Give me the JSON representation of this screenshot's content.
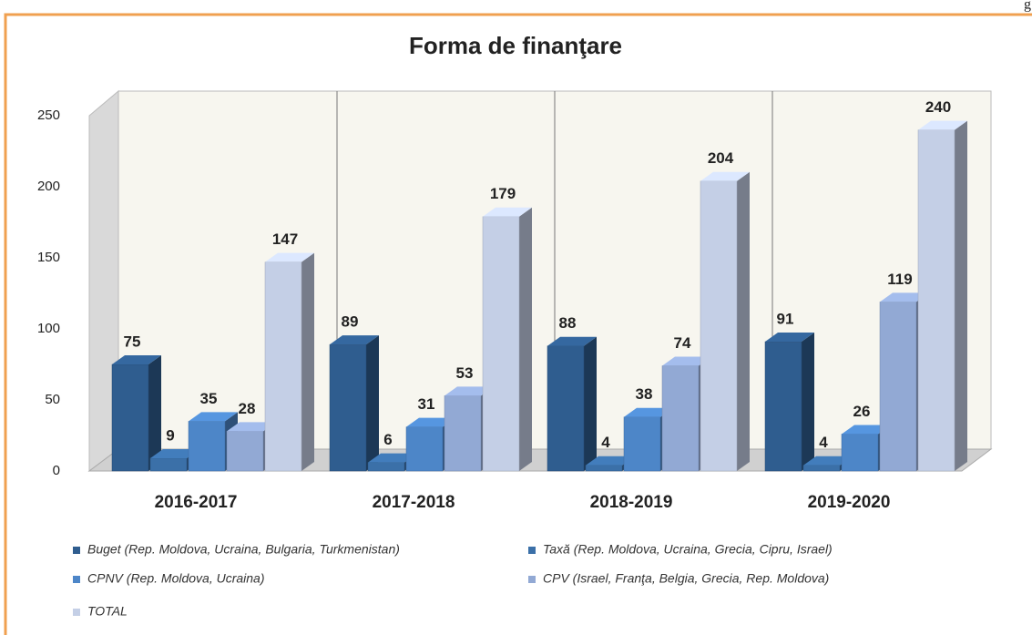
{
  "corner_text": "g",
  "chart_data": {
    "type": "bar3d",
    "title": "Forma de finanţare",
    "categories": [
      "2016-2017",
      "2017-2018",
      "2018-2019",
      "2019-2020"
    ],
    "series": [
      {
        "name": "Buget (Rep. Moldova, Ucraina, Bulgaria, Turkmenistan)",
        "color": "#2f5d8f",
        "values": [
          75,
          89,
          88,
          91
        ]
      },
      {
        "name": "Taxă (Rep. Moldova, Ucraina, Grecia, Cipru, Israel)",
        "color": "#3b70a8",
        "values": [
          9,
          6,
          4,
          4
        ]
      },
      {
        "name": "CPNV (Rep. Moldova, Ucraina)",
        "color": "#4d86c8",
        "values": [
          35,
          31,
          38,
          26
        ]
      },
      {
        "name": "CPV (Israel, Franţa, Belgia, Grecia, Rep. Moldova)",
        "color": "#92a9d4",
        "values": [
          28,
          53,
          74,
          119
        ]
      },
      {
        "name": "TOTAL",
        "color": "#c4cfe6",
        "values": [
          147,
          179,
          204,
          240
        ]
      }
    ],
    "ylim": [
      0,
      250
    ],
    "yticks": [
      0,
      50,
      100,
      150,
      200,
      250
    ]
  }
}
